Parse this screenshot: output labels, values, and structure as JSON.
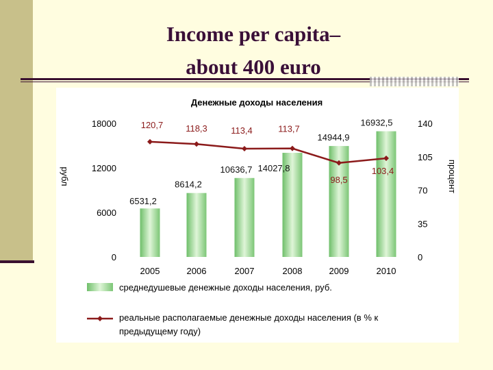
{
  "slide": {
    "title_line1": "Income per capita–",
    "title_line2": "about 400 euro"
  },
  "colors": {
    "line": "#8b1a1a",
    "bar": "#9fd89a",
    "title": "#3a0f38"
  },
  "chart_data": {
    "type": "bar",
    "title": "Денежные доходы населения",
    "categories": [
      "2005",
      "2006",
      "2007",
      "2008",
      "2009",
      "2010"
    ],
    "series": [
      {
        "name": "среднедушевые денежные доходы населения, руб.",
        "type": "bar",
        "axis": "left",
        "values": [
          6531.2,
          8614.2,
          10636.7,
          14027.8,
          14944.9,
          16932.5
        ],
        "labels": [
          "6531,2",
          "8614,2",
          "10636,7",
          "14027,8",
          "14944,9",
          "16932,5"
        ]
      },
      {
        "name": "реальные располагаемые денежные доходы населения (в % к предыдущему году)",
        "type": "line",
        "axis": "right",
        "values": [
          120.7,
          118.3,
          113.4,
          113.7,
          98.5,
          103.4
        ],
        "labels": [
          "120,7",
          "118,3",
          "113,4",
          "113,7",
          "98,5",
          "103,4"
        ]
      }
    ],
    "y_left": {
      "ylim": [
        0,
        18000
      ],
      "ticks": [
        "0",
        "6000",
        "12000",
        "18000"
      ],
      "label": "рубл"
    },
    "y_right": {
      "ylim": [
        0,
        140
      ],
      "ticks": [
        "0",
        "35",
        "70",
        "105",
        "140"
      ],
      "label": "процент"
    },
    "legend_position": "bottom"
  }
}
